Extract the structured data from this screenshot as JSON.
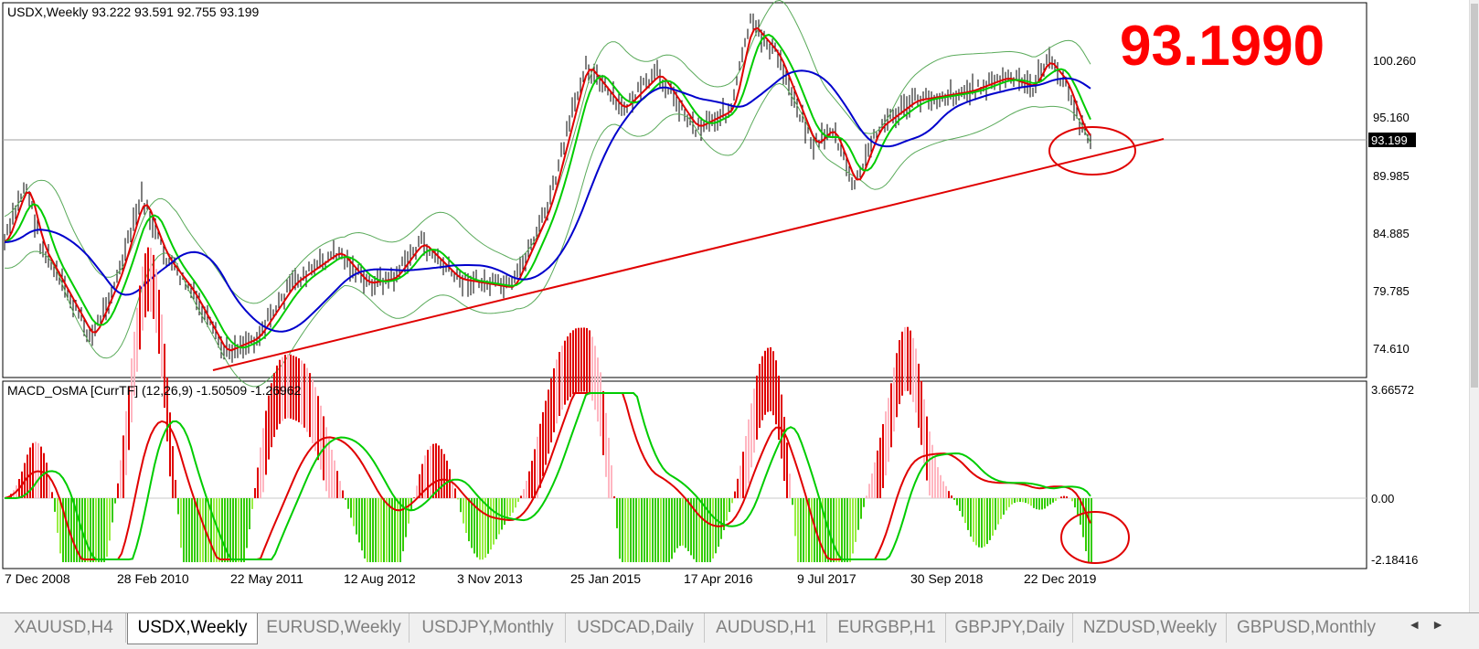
{
  "main_chart": {
    "symbol_info": "USDX,Weekly  93.222 93.591 92.755 93.199",
    "big_price": "93.1990",
    "current_price_label": "93.199",
    "price_axis": [
      "100.260",
      "95.160",
      "89.985",
      "84.885",
      "79.785",
      "74.610"
    ]
  },
  "indicator": {
    "info": "MACD_OsMA [CurrTF] (12,26,9) -1.50509 -1.26962",
    "axis": [
      "3.66572",
      "0.00",
      "-2.18416"
    ]
  },
  "time_axis": [
    "7 Dec 2008",
    "28 Feb 2010",
    "22 May 2011",
    "12 Aug 2012",
    "3 Nov 2013",
    "25 Jan 2015",
    "17 Apr 2016",
    "9 Jul 2017",
    "30 Sep 2018",
    "22 Dec 2019"
  ],
  "tabs": [
    {
      "label": "XAUUSD,H4",
      "active": false
    },
    {
      "label": "USDX,Weekly",
      "active": true
    },
    {
      "label": "EURUSD,Weekly",
      "active": false
    },
    {
      "label": "USDJPY,Monthly",
      "active": false
    },
    {
      "label": "USDCAD,Daily",
      "active": false
    },
    {
      "label": "AUDUSD,H1",
      "active": false
    },
    {
      "label": "EURGBP,H1",
      "active": false
    },
    {
      "label": "GBPJPY,Daily",
      "active": false
    },
    {
      "label": "NZDUSD,Weekly",
      "active": false
    },
    {
      "label": "GBPUSD,Monthly",
      "active": false
    }
  ],
  "scroll_arrows": {
    "left": "◄",
    "right": "►"
  },
  "colors": {
    "trendline": "#e00000",
    "ma_fast": "#e00000",
    "ma_mid": "#00cc00",
    "ma_slow": "#0000cc",
    "bollinger": "#5aaa5a",
    "hist_pos": "#e00000",
    "hist_pos_light": "#ffb6c1",
    "hist_neg": "#33cc00",
    "hist_neg_light": "#99ee44",
    "big_price": "#ff0000",
    "price_tag": "#000000"
  }
}
